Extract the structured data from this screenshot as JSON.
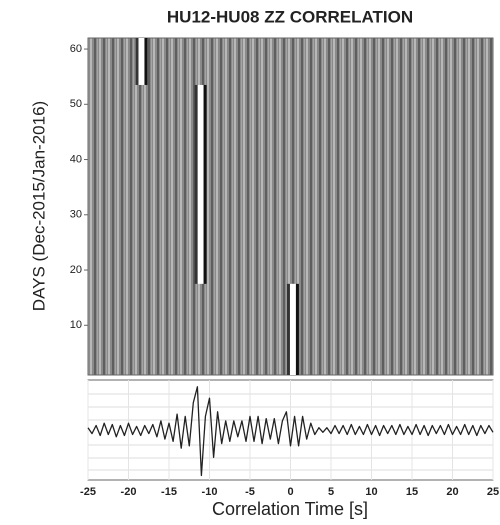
{
  "chart_data": [
    {
      "type": "correlogram",
      "title": "HU12-HU08 ZZ CORRELATION",
      "ylabel": "DAYS (Dec-2015/Jan-2016)",
      "xlim": [
        -25,
        25
      ],
      "ylim": [
        1,
        62
      ],
      "yticks": [
        10,
        20,
        30,
        40,
        50,
        60
      ],
      "lines": [
        {
          "lag": 0.3,
          "days": [
            1,
            17.5
          ]
        },
        {
          "lag": -11.1,
          "days": [
            17.5,
            53.5
          ]
        },
        {
          "lag": -18.4,
          "days": [
            53.5,
            62
          ]
        }
      ]
    },
    {
      "type": "line",
      "xlabel": "Correlation Time [s]",
      "xlim": [
        -25,
        25
      ],
      "ylim": [
        -1.1,
        1.1
      ],
      "xticks": [
        -25,
        -20,
        -15,
        -10,
        -5,
        0,
        5,
        10,
        15,
        20,
        25
      ],
      "color": "#222222",
      "x": [
        -25,
        -24.5,
        -24,
        -23.5,
        -23,
        -22.5,
        -22,
        -21.5,
        -21,
        -20.5,
        -20,
        -19.5,
        -19,
        -18.5,
        -18,
        -17.5,
        -17,
        -16.5,
        -16,
        -15.5,
        -15,
        -14.5,
        -14,
        -13.5,
        -13,
        -12.5,
        -12,
        -11.5,
        -11,
        -10.5,
        -10,
        -9.5,
        -9,
        -8.5,
        -8,
        -7.5,
        -7,
        -6.5,
        -6,
        -5.5,
        -5,
        -4.5,
        -4,
        -3.5,
        -3,
        -2.5,
        -2,
        -1.5,
        -1,
        -0.5,
        0,
        0.5,
        1,
        1.5,
        2,
        2.5,
        3,
        3.5,
        4,
        4.5,
        5,
        5.5,
        6,
        6.5,
        7,
        7.5,
        8,
        8.5,
        9,
        9.5,
        10,
        10.5,
        11,
        11.5,
        12,
        12.5,
        13,
        13.5,
        14,
        14.5,
        15,
        15.5,
        16,
        16.5,
        17,
        17.5,
        18,
        18.5,
        19,
        19.5,
        20,
        20.5,
        21,
        21.5,
        22,
        22.5,
        23,
        23.5,
        24,
        24.5,
        25
      ],
      "values": [
        0.05,
        -0.08,
        0.1,
        -0.12,
        0.15,
        -0.1,
        0.12,
        -0.15,
        0.1,
        -0.12,
        0.15,
        -0.1,
        0.08,
        -0.12,
        0.1,
        -0.08,
        0.12,
        -0.15,
        0.2,
        -0.2,
        0.15,
        -0.25,
        0.35,
        -0.4,
        0.3,
        -0.35,
        0.6,
        0.95,
        -1.0,
        0.3,
        0.7,
        -0.6,
        0.4,
        -0.3,
        0.2,
        -0.25,
        0.2,
        -0.15,
        0.2,
        -0.25,
        0.3,
        -0.25,
        0.3,
        -0.3,
        0.25,
        -0.2,
        0.25,
        -0.3,
        0.2,
        0.4,
        -0.35,
        0.3,
        -0.35,
        0.3,
        -0.2,
        0.15,
        -0.1,
        0.05,
        -0.05,
        0.05,
        -0.08,
        0.1,
        -0.08,
        0.1,
        -0.1,
        0.12,
        -0.1,
        0.08,
        -0.1,
        0.12,
        -0.1,
        0.1,
        -0.12,
        0.1,
        -0.08,
        0.1,
        -0.1,
        0.12,
        -0.1,
        0.08,
        -0.1,
        0.12,
        -0.1,
        0.1,
        -0.12,
        0.1,
        -0.08,
        0.1,
        -0.1,
        0.12,
        -0.1,
        0.08,
        -0.1,
        0.12,
        -0.1,
        0.1,
        -0.12,
        0.1,
        -0.08,
        0.1,
        -0.05
      ]
    }
  ]
}
